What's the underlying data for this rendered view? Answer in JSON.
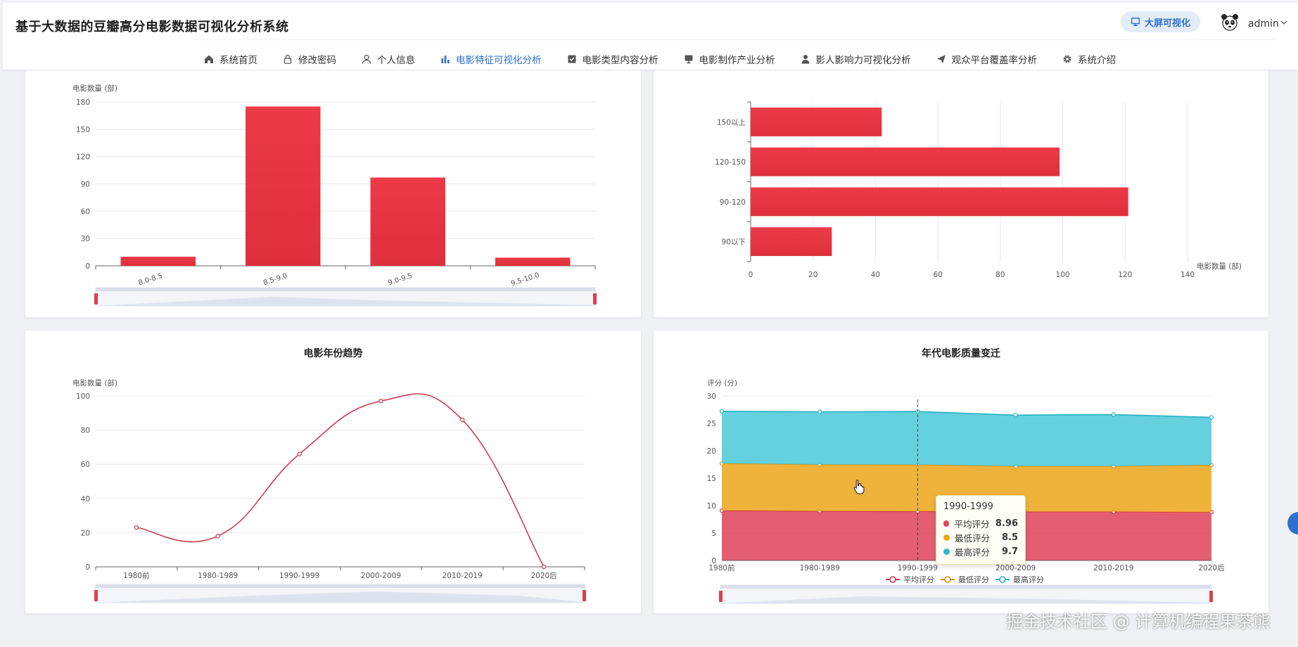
{
  "app": {
    "title": "基于大数据的豆瓣高分电影数据可视化分析系统"
  },
  "header": {
    "bigscreen_label": "大屏可视化",
    "user_name": "admin"
  },
  "nav": [
    {
      "label": "系统首页",
      "icon": "home-icon"
    },
    {
      "label": "修改密码",
      "icon": "lock-icon"
    },
    {
      "label": "个人信息",
      "icon": "user-icon"
    },
    {
      "label": "电影特征可视化分析",
      "icon": "bar-chart-icon",
      "active": true
    },
    {
      "label": "电影类型内容分析",
      "icon": "checkbox-icon"
    },
    {
      "label": "电影制作产业分析",
      "icon": "monitor-icon"
    },
    {
      "label": "影人影响力可视化分析",
      "icon": "person-icon"
    },
    {
      "label": "观众平台覆盖率分析",
      "icon": "send-icon"
    },
    {
      "label": "系统介绍",
      "icon": "gear-icon"
    }
  ],
  "colors": {
    "accent": "#2f6fd0",
    "bar": "#e5323f",
    "line": "#c9404f",
    "avg": "#e0435a",
    "min": "#eca61c",
    "max": "#4cc9d9"
  },
  "chart_data": [
    {
      "type": "bar",
      "title": "",
      "ylabel": "电影数量 (部)",
      "categories": [
        "8.0-8.5",
        "8.5-9.0",
        "9.0-9.5",
        "9.5-10.0"
      ],
      "values": [
        10,
        175,
        97,
        9
      ],
      "ylim": [
        0,
        180
      ],
      "yticks": [
        "0",
        "30",
        "60",
        "90",
        "120",
        "150",
        "180"
      ],
      "grid": true,
      "zoom_slider": true
    },
    {
      "type": "bar",
      "orientation": "horizontal",
      "title": "",
      "xlabel": "电影数量 (部)",
      "categories": [
        "90以下",
        "90-120",
        "120-150",
        "150以上"
      ],
      "values": [
        26,
        121,
        99,
        42
      ],
      "xlim": [
        0,
        140
      ],
      "xticks": [
        "0",
        "20",
        "40",
        "60",
        "80",
        "100",
        "120",
        "140"
      ],
      "grid": true
    },
    {
      "type": "line",
      "title": "电影年份趋势",
      "ylabel": "电影数量 (部)",
      "categories": [
        "1980前",
        "1980-1989",
        "1990-1999",
        "2000-2009",
        "2010-2019",
        "2020后"
      ],
      "values": [
        23,
        18,
        66,
        97,
        86,
        0
      ],
      "ylim": [
        0,
        100
      ],
      "yticks": [
        "0",
        "20",
        "40",
        "60",
        "80",
        "100"
      ],
      "smooth": true,
      "grid": true,
      "zoom_slider": true
    },
    {
      "type": "area",
      "stacked": true,
      "title": "年代电影质量变迁",
      "ylabel": "评分 (分)",
      "categories": [
        "1980前",
        "1980-1989",
        "1990-1999",
        "2000-2009",
        "2010-2019",
        "2020后"
      ],
      "series": [
        {
          "name": "平均评分",
          "values": [
            9.1,
            9.0,
            8.96,
            8.9,
            8.9,
            8.8
          ]
        },
        {
          "name": "最低评分",
          "values": [
            8.6,
            8.5,
            8.5,
            8.3,
            8.3,
            8.6
          ]
        },
        {
          "name": "最高评分",
          "values": [
            9.5,
            9.6,
            9.7,
            9.3,
            9.4,
            8.7
          ]
        }
      ],
      "ylim": [
        0,
        30
      ],
      "yticks": [
        "0",
        "5",
        "10",
        "15",
        "20",
        "25",
        "30"
      ],
      "grid": true,
      "legend": "bottom",
      "zoom_slider": true,
      "tooltip": {
        "category": "1990-1999",
        "rows": [
          {
            "name": "平均评分",
            "value": "8.96"
          },
          {
            "name": "最低评分",
            "value": "8.5"
          },
          {
            "name": "最高评分",
            "value": "9.7"
          }
        ]
      }
    }
  ],
  "watermark": "掘金技术社区 @ 计算机编程果茶熊"
}
